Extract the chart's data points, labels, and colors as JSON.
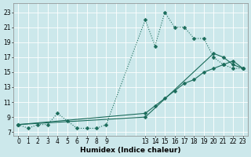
{
  "xlabel": "Humidex (Indice chaleur)",
  "bg_color": "#cce8eb",
  "grid_color": "#ffffff",
  "line_color": "#1a6b5a",
  "xlim": [
    -0.5,
    23.5
  ],
  "ylim": [
    6.5,
    24.2
  ],
  "xticks": [
    0,
    1,
    2,
    3,
    4,
    5,
    6,
    7,
    8,
    9,
    13,
    14,
    15,
    16,
    17,
    18,
    19,
    20,
    21,
    22,
    23
  ],
  "yticks": [
    7,
    9,
    11,
    13,
    15,
    17,
    19,
    21,
    23
  ],
  "series1_x": [
    0,
    1,
    2,
    3,
    4,
    5,
    6,
    7,
    8,
    9,
    13,
    14,
    15,
    16,
    17,
    18,
    19,
    20,
    21,
    22,
    23
  ],
  "series1_y": [
    8.0,
    7.5,
    8.0,
    8.0,
    9.5,
    8.5,
    7.5,
    7.5,
    7.5,
    8.0,
    22.0,
    18.5,
    23.0,
    21.0,
    21.0,
    19.5,
    19.5,
    17.0,
    16.0,
    15.5,
    15.5
  ],
  "series2_x": [
    0,
    13,
    14,
    15,
    16,
    17,
    18,
    19,
    20,
    21,
    22,
    23
  ],
  "series2_y": [
    8.0,
    9.5,
    10.5,
    11.5,
    12.5,
    13.5,
    14.0,
    15.0,
    15.5,
    16.0,
    16.5,
    15.5
  ],
  "series3_x": [
    0,
    13,
    20,
    21,
    22,
    23
  ],
  "series3_y": [
    8.0,
    9.0,
    17.5,
    17.0,
    16.0,
    15.5
  ],
  "marker_size": 2.5,
  "line_width": 0.8,
  "tick_fontsize": 5.5,
  "xlabel_fontsize": 6.5
}
